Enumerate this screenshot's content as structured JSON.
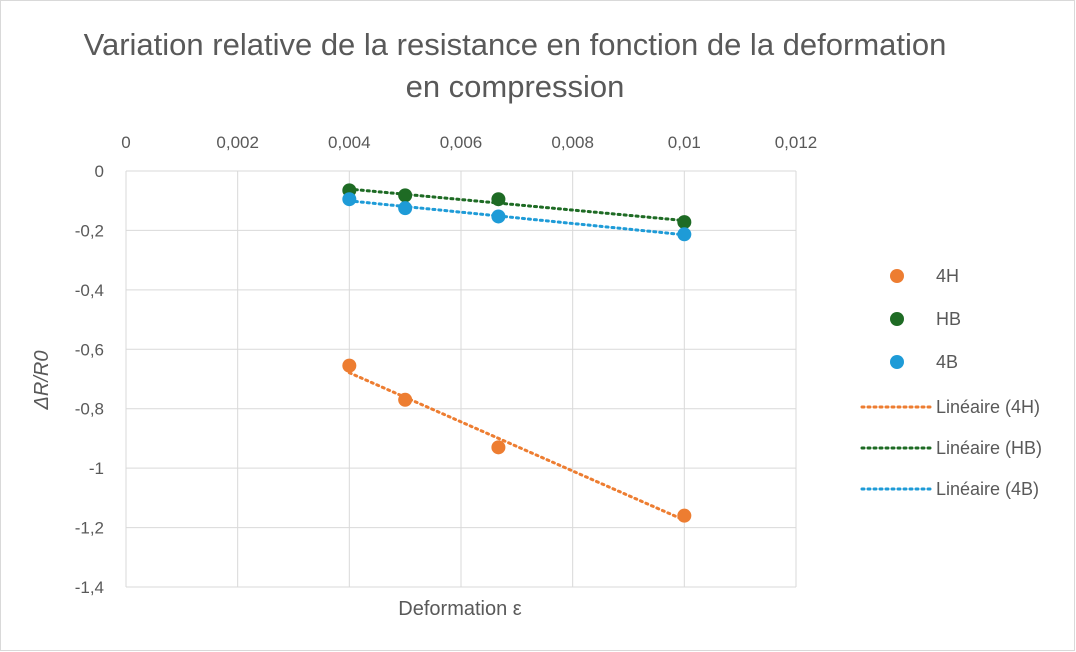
{
  "chart_data": {
    "type": "scatter",
    "title": "Variation relative de la resistance en fonction de la deformation en compression",
    "xlabel": "Deformation  ε",
    "ylabel": "ΔR/R0",
    "xlim": [
      0,
      0.012
    ],
    "ylim": [
      -1.4,
      0
    ],
    "x_ticks": [
      0,
      0.002,
      0.004,
      0.006,
      0.008,
      0.01,
      0.012
    ],
    "x_tick_labels": [
      "0",
      "0,002",
      "0,004",
      "0,006",
      "0,008",
      "0,01",
      "0,012"
    ],
    "y_ticks": [
      0,
      -0.2,
      -0.4,
      -0.6,
      -0.8,
      -1,
      -1.2,
      -1.4
    ],
    "y_tick_labels": [
      "0",
      "-0,2",
      "-0,4",
      "-0,6",
      "-0,8",
      "-1",
      "-1,2",
      "-1,4"
    ],
    "x_axis_position": "top",
    "grid": true,
    "legend_position": "right",
    "series": [
      {
        "name": "4H",
        "color": "#ED7D31",
        "x": [
          0.004,
          0.005,
          0.00667,
          0.01
        ],
        "y": [
          -0.655,
          -0.77,
          -0.93,
          -1.16
        ]
      },
      {
        "name": "HB",
        "color": "#1E6B24",
        "x": [
          0.004,
          0.005,
          0.00667,
          0.01
        ],
        "y": [
          -0.065,
          -0.082,
          -0.095,
          -0.172
        ]
      },
      {
        "name": "4B",
        "color": "#1E9BD7",
        "x": [
          0.004,
          0.005,
          0.00667,
          0.01
        ],
        "y": [
          -0.095,
          -0.125,
          -0.153,
          -0.213
        ]
      }
    ],
    "trendlines": [
      {
        "name": "Linéaire (4H)",
        "series": "4H",
        "type": "linear",
        "color": "#ED7D31"
      },
      {
        "name": "Linéaire (HB)",
        "series": "HB",
        "type": "linear",
        "color": "#1E6B24"
      },
      {
        "name": "Linéaire (4B)",
        "series": "4B",
        "type": "linear",
        "color": "#1E9BD7"
      }
    ]
  }
}
